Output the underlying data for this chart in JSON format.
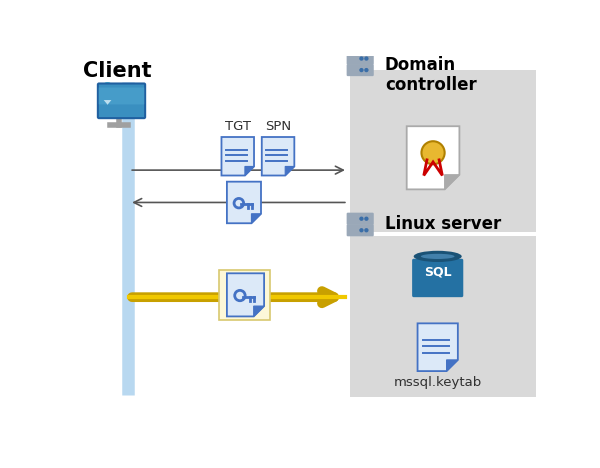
{
  "bg_color": "#ffffff",
  "panel_color": "#d9d9d9",
  "client_label": "Client",
  "domain_label": "Domain\ncontroller",
  "linux_label": "Linux server",
  "tgt_label": "TGT",
  "spn_label": "SPN",
  "mssql_label": "mssql.keytab",
  "bar_color": "#b8d8f0",
  "arrow1_color": "#555555",
  "arrow2_color": "#555555",
  "arrow3_color_outer": "#c8a000",
  "arrow3_color_inner": "#f0c800",
  "doc_blue": "#4472c4",
  "doc_light": "#dce9f8",
  "doc_white": "#ffffff",
  "server_dark": "#6b7a8d",
  "server_light": "#9aa8b8",
  "led_blue": "#3a6ea8",
  "sql_dark": "#1a5276",
  "sql_mid": "#2471a3",
  "sql_light": "#5da0d0",
  "medal_gold": "#e8b830",
  "medal_rim": "#b08000",
  "ribbon_red": "#cc0000",
  "highlight_bg": "#fdf8d8",
  "highlight_border": "#d8c870"
}
